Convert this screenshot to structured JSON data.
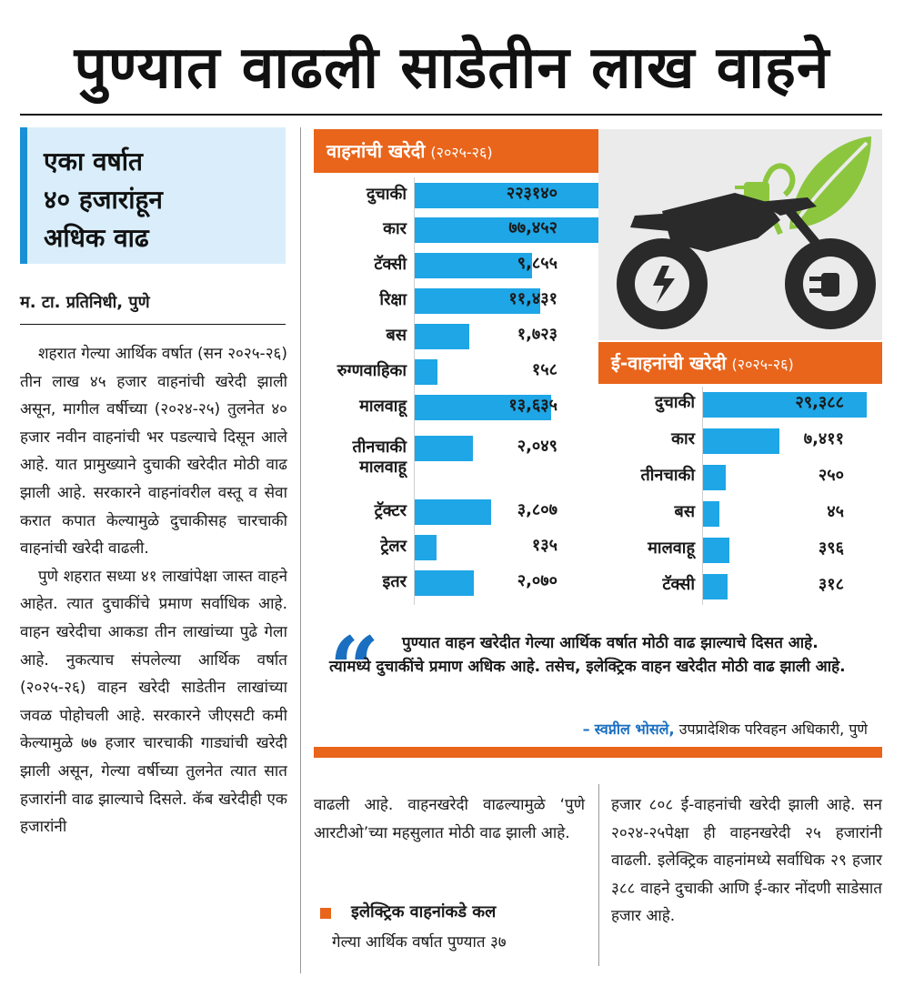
{
  "headline": "पुण्यात वाढली साडेतीन लाख वाहने",
  "subhead": {
    "lines": [
      "एका वर्षात",
      "४० हजारांहून",
      "अधिक वाढ"
    ]
  },
  "byline": "म. टा. प्रतिनिधी, पुणे",
  "article": {
    "col1_p1": "शहरात गेल्या आर्थिक वर्षात (सन २०२५-२६) तीन लाख ४५ हजार वाहनांची खरेदी झाली असून, मागील वर्षीच्या (२०२४-२५) तुलनेत ४० हजार नवीन वाहनांची भर पडल्याचे दिसून आले आहे. यात प्रामुख्याने दुचाकी खरेदीत मोठी वाढ झाली आहे. सरकारने वाहनांवरील वस्तू व सेवा करात कपात केल्यामुळे दुचाकीसह चारचाकी वाहनांची खरेदी वाढली.",
    "col1_p2": "पुणे शहरात सध्या ४१ लाखांपेक्षा जास्त वाहने आहेत. त्यात दुचाकींचे प्रमाण सर्वाधिक आहे. वाहन खरेदीचा आकडा तीन लाखांच्या पुढे गेला आहे. नुकत्याच संपलेल्या आर्थिक वर्षात (२०२५-२६) वाहन खरेदी साडेतीन लाखांच्या जवळ पोहोचली आहे. सरकारने जीएसटी कमी केल्यामुळे ७७ हजार चारचाकी गाड्यांची खरेदी झाली असून, गेल्या वर्षीच्या तुलनेत त्यात सात हजारांनी वाढ झाल्याचे दिसले. कॅब खरेदीही एक हजारांनी",
    "col2_p1": "वाढली आहे. वाहनखरेदी वाढल्यामुळे ‘पुणे आरटीओ’च्या महसुलात मोठी वाढ झाली आहे.",
    "col2_heading": "इलेक्ट्रिक वाहनांकडे कल",
    "col2_p2": "गेल्या आर्थिक वर्षात पुण्यात ३७",
    "col3_p1": "हजार ८०८ ई-वाहनांची खरेदी झाली आहे. सन २०२४-२५पेक्षा ही वाहनखरेदी २५ हजारांनी वाढली. इलेक्ट्रिक वाहनांमध्ये सर्वाधिक २९ हजार ३८८ वाहने दुचाकी आणि ई-कार नोंदणी साडेसात हजार आहे."
  },
  "quote": {
    "mark": "“",
    "text": "पुण्यात वाहन खरेदीत गेल्या आर्थिक वर्षात मोठी वाढ झाल्याचे दिसत आहे. त्यामध्ये दुचाकींचे प्रमाण अधिक आहे. तसेच, इलेक्ट्रिक वाहन खरेदीत मोठी वाढ झाली आहे.",
    "dash": "–",
    "name": "स्वप्नील भोसले,",
    "role": "उपप्रादेशिक परिवहन अधिकारी, पुणे"
  },
  "colors": {
    "accent_orange": "#e8651b",
    "bar_blue": "#1ea6e6",
    "quote_blue": "#1a6fc1",
    "subhead_bg": "#d9eefa",
    "leaf_green": "#8cc63f"
  },
  "icons": [
    "ev-motorcycle-icon",
    "leaf-plug-icon",
    "quote-icon"
  ],
  "chart_data": [
    {
      "type": "bar",
      "title": "वाहनांची खरेदी",
      "subtitle": "(२०२५-२६)",
      "categories": [
        "दुचाकी",
        "कार",
        "टॅक्सी",
        "रिक्षा",
        "बस",
        "रुग्णवाहिका",
        "मालवाहू",
        "तीनचाकी मालवाहू",
        "ट्रॅक्टर",
        "ट्रेलर",
        "इतर"
      ],
      "display_values": [
        "२२३१४०",
        "७७,४५२",
        "९,८५५",
        "११,४३१",
        "१,७२३",
        "१५८",
        "१३,६३५",
        "२,०४९",
        "३,८०७",
        "१३५",
        "२,०७०"
      ],
      "values": [
        223140,
        77452,
        9855,
        11431,
        1723,
        158,
        13635,
        2049,
        3807,
        135,
        2070
      ]
    },
    {
      "type": "bar",
      "title": "ई-वाहनांची खरेदी",
      "subtitle": "(२०२५-२६)",
      "categories": [
        "दुचाकी",
        "कार",
        "तीनचाकी",
        "बस",
        "मालवाहू",
        "टॅक्सी"
      ],
      "display_values": [
        "२९,३८८",
        "७,४११",
        "२५०",
        "४५",
        "३९६",
        "३१८"
      ],
      "values": [
        29388,
        7411,
        250,
        45,
        396,
        318
      ]
    }
  ]
}
